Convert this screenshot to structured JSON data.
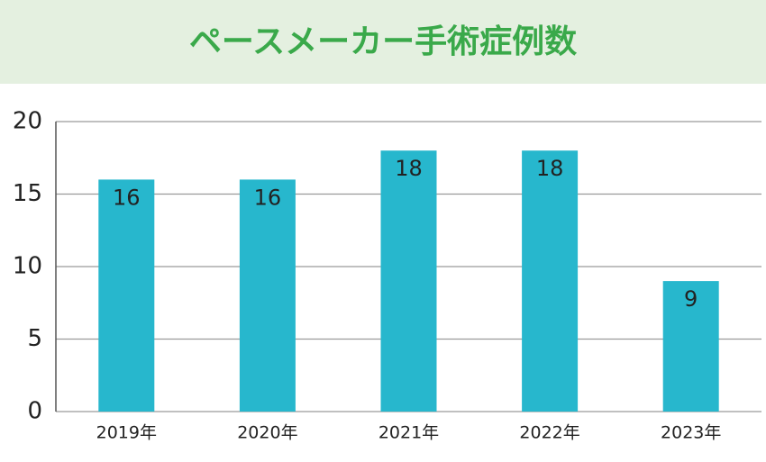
{
  "chart_data": {
    "type": "bar",
    "title": "ペースメーカー手術症例数",
    "categories": [
      "2019年",
      "2020年",
      "2021年",
      "2022年",
      "2023年"
    ],
    "values": [
      16,
      16,
      18,
      18,
      9
    ],
    "color": "#27b7cd",
    "ylim": [
      0,
      20
    ],
    "yticks": [
      0,
      5,
      10,
      15,
      20
    ],
    "grid": true
  }
}
